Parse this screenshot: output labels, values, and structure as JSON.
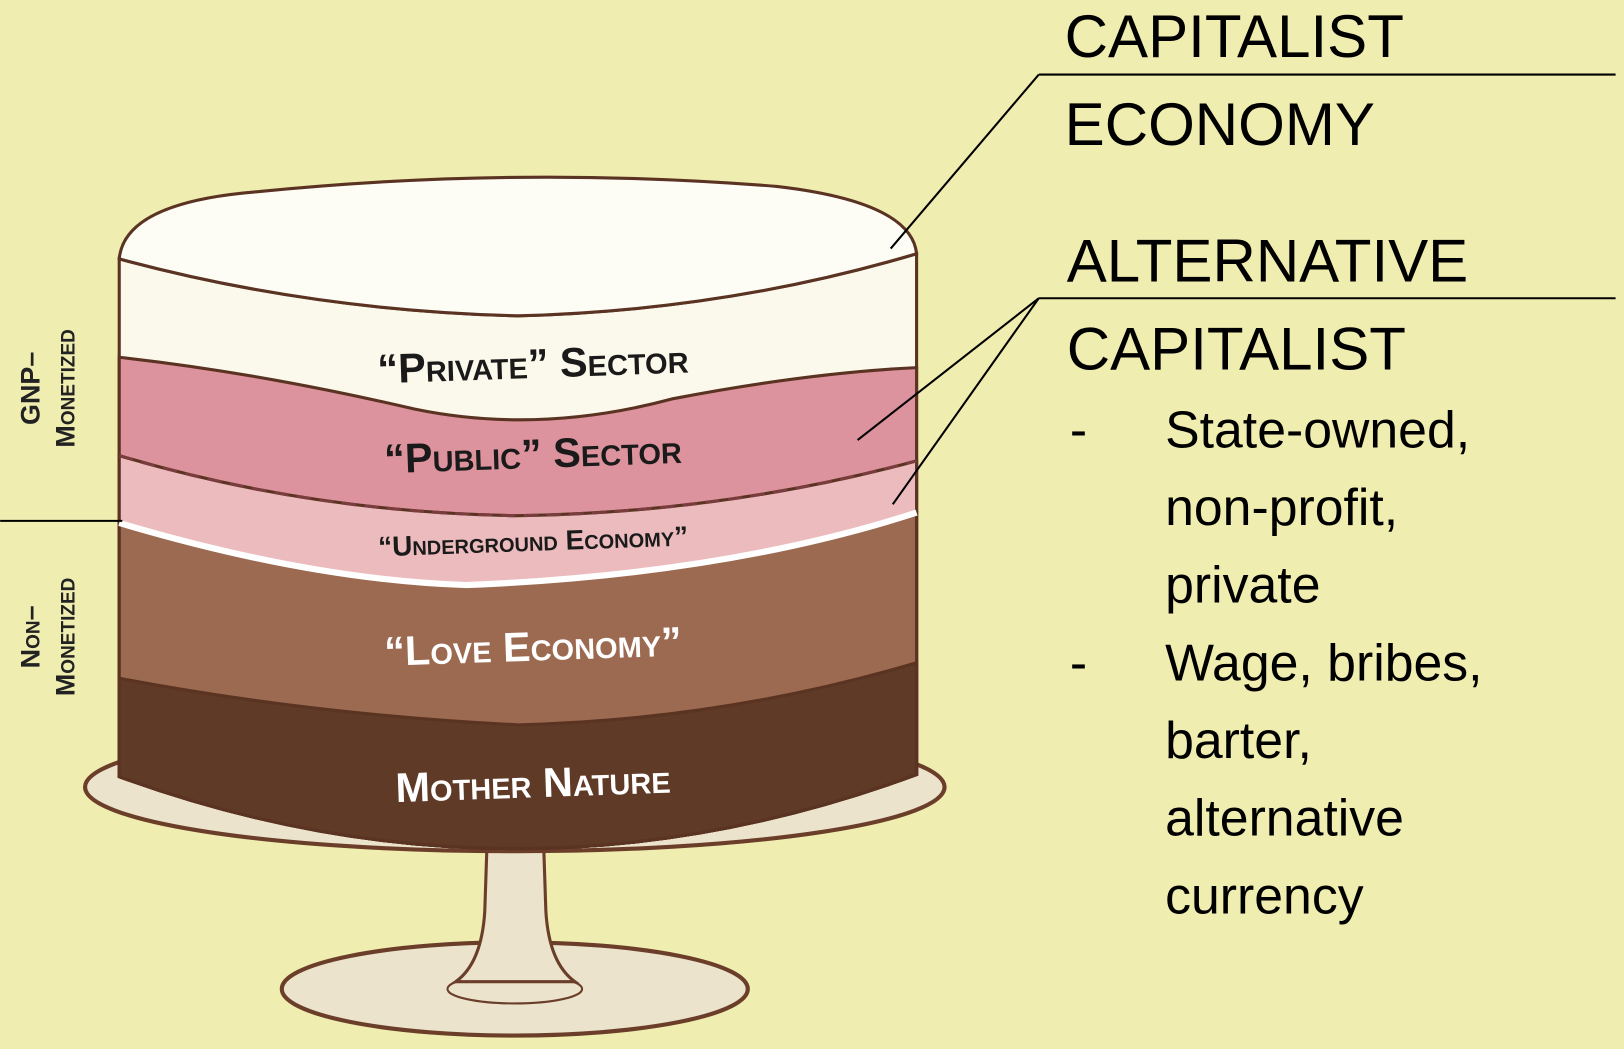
{
  "left_labels": [
    {
      "lines": [
        "GNP–",
        "Monetized"
      ]
    },
    {
      "lines": [
        "Non–",
        "Monetized"
      ]
    }
  ],
  "cake_layers": [
    "“Private” Sector",
    "“Public” Sector",
    "“Underground Economy”",
    "“Love Economy”",
    "Mother Nature"
  ],
  "right_panel": {
    "capitalist": [
      "CAPITALIST",
      "ECONOMY"
    ],
    "alternative": [
      "ALTERNATIVE",
      "CAPITALIST"
    ],
    "items": [
      {
        "marker": "-",
        "lines": [
          "State-owned,",
          "non-profit,",
          "private"
        ]
      },
      {
        "marker": "-",
        "lines": [
          "Wage, bribes,",
          "barter,",
          "alternative",
          "currency"
        ]
      }
    ]
  }
}
